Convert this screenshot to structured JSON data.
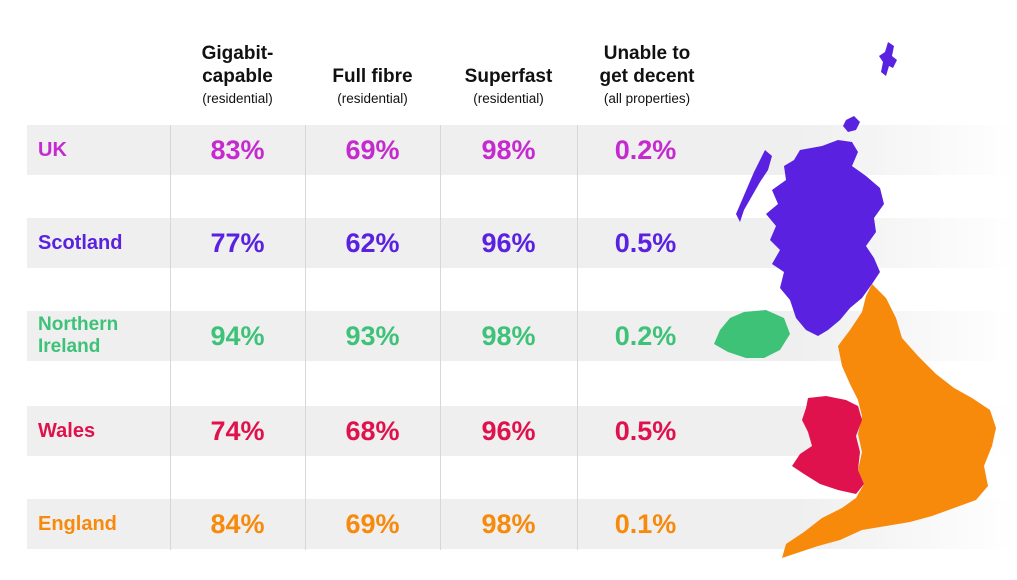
{
  "headers": [
    {
      "line1": "Gigabit-",
      "line2": "capable",
      "sub": "(residential)"
    },
    {
      "line1": "",
      "line2": "Full fibre",
      "sub": "(residential)"
    },
    {
      "line1": "",
      "line2": "Superfast",
      "sub": "(residential)"
    },
    {
      "line1": "Unable to",
      "line2": "get decent",
      "sub": "(all properties)"
    }
  ],
  "rows": [
    {
      "name": "UK",
      "name2": "",
      "color": "#c52ad0",
      "values": [
        "83%",
        "69%",
        "98%",
        "0.2%"
      ]
    },
    {
      "name": "Scotland",
      "name2": "",
      "color": "#5a22e0",
      "values": [
        "77%",
        "62%",
        "96%",
        "0.5%"
      ]
    },
    {
      "name": "Northern",
      "name2": "Ireland",
      "color": "#3dc278",
      "values": [
        "94%",
        "93%",
        "98%",
        "0.2%"
      ]
    },
    {
      "name": "Wales",
      "name2": "",
      "color": "#e0124d",
      "values": [
        "74%",
        "68%",
        "96%",
        "0.5%"
      ]
    },
    {
      "name": "England",
      "name2": "",
      "color": "#f7890b",
      "values": [
        "84%",
        "69%",
        "98%",
        "0.1%"
      ]
    }
  ],
  "map": {
    "scotland_color": "#5a22e0",
    "northern_ireland_color": "#3dc278",
    "wales_color": "#e0124d",
    "england_color": "#f7890b"
  }
}
